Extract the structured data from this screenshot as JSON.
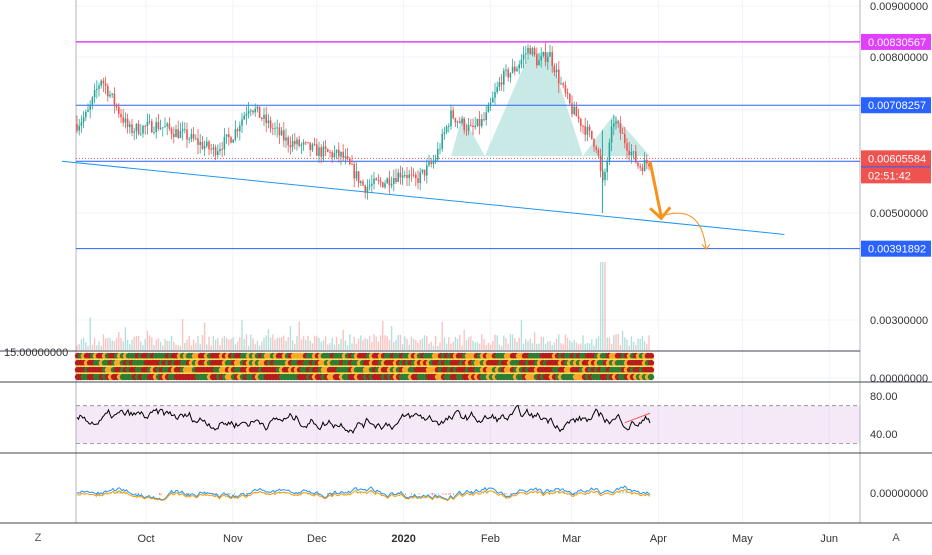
{
  "chart_data": {
    "type": "candlestick",
    "x_tick_labels": [
      "Oct",
      "Nov",
      "Dec",
      "2020",
      "Feb",
      "Mar",
      "Apr",
      "May",
      "Jun"
    ],
    "y_tick_labels": [
      "0.00900000",
      "0.00800000",
      "0.00500000",
      "0.00300000",
      "0.00000000"
    ],
    "price_range": [
      0.0,
      0.0093
    ],
    "price_series": {
      "name": "",
      "points": [
        {
          "date": "2019-09-04",
          "price": 0.0066
        },
        {
          "date": "2019-09-10",
          "price": 0.0069
        },
        {
          "date": "2019-09-15",
          "price": 0.0076
        },
        {
          "date": "2019-09-20",
          "price": 0.0071
        },
        {
          "date": "2019-09-25",
          "price": 0.0066
        },
        {
          "date": "2019-10-05",
          "price": 0.0067
        },
        {
          "date": "2019-10-15",
          "price": 0.0065
        },
        {
          "date": "2019-10-25",
          "price": 0.0062
        },
        {
          "date": "2019-11-01",
          "price": 0.0065
        },
        {
          "date": "2019-11-07",
          "price": 0.0071
        },
        {
          "date": "2019-11-12",
          "price": 0.0068
        },
        {
          "date": "2019-11-20",
          "price": 0.0064
        },
        {
          "date": "2019-12-01",
          "price": 0.0062
        },
        {
          "date": "2019-12-10",
          "price": 0.0061
        },
        {
          "date": "2019-12-18",
          "price": 0.0055
        },
        {
          "date": "2019-12-25",
          "price": 0.0056
        },
        {
          "date": "2020-01-01",
          "price": 0.0058
        },
        {
          "date": "2020-01-05",
          "price": 0.0056
        },
        {
          "date": "2020-01-12",
          "price": 0.006
        },
        {
          "date": "2020-01-18",
          "price": 0.0069
        },
        {
          "date": "2020-01-25",
          "price": 0.0066
        },
        {
          "date": "2020-01-30",
          "price": 0.0068
        },
        {
          "date": "2020-02-05",
          "price": 0.0076
        },
        {
          "date": "2020-02-10",
          "price": 0.0078
        },
        {
          "date": "2020-02-15",
          "price": 0.0082
        },
        {
          "date": "2020-02-18",
          "price": 0.0079
        },
        {
          "date": "2020-02-22",
          "price": 0.0081
        },
        {
          "date": "2020-02-26",
          "price": 0.0075
        },
        {
          "date": "2020-03-01",
          "price": 0.007
        },
        {
          "date": "2020-03-05",
          "price": 0.0067
        },
        {
          "date": "2020-03-10",
          "price": 0.0063
        },
        {
          "date": "2020-03-12",
          "price": 0.0055
        },
        {
          "date": "2020-03-14",
          "price": 0.0061
        },
        {
          "date": "2020-03-16",
          "price": 0.0068
        },
        {
          "date": "2020-03-20",
          "price": 0.0064
        },
        {
          "date": "2020-03-25",
          "price": 0.0059
        },
        {
          "date": "2020-03-29",
          "price": 0.006
        }
      ]
    },
    "horizontal_levels": [
      {
        "label": "0.00830567",
        "value": 0.00830567,
        "color": "#e040fb"
      },
      {
        "label": "0.00708257",
        "value": 0.00708257,
        "color": "#2962ff"
      },
      {
        "label": "0.00599921",
        "value": 0.00599921,
        "color": "#2962ff"
      },
      {
        "label": "0.00391892",
        "value": 0.00391892,
        "color": "#2962ff"
      }
    ],
    "current_price": {
      "label": "0.00605584",
      "value": 0.00605584,
      "countdown": "02:51:42",
      "color": "#ef5350"
    },
    "trendline": {
      "start": {
        "date": "2019-09-01",
        "price": 0.006
      },
      "end": {
        "date": "2020-05-16",
        "price": 0.00435
      }
    },
    "projection_arrows": [
      {
        "from": {
          "date": "2020-03-29",
          "price": 0.006
        },
        "to": {
          "date": "2020-04-02",
          "price": 0.0049
        },
        "color": "#f7931a"
      },
      {
        "from": {
          "date": "2020-04-02",
          "price": 0.0049
        },
        "to": {
          "date": "2020-04-18",
          "price": 0.0039
        },
        "color": "#f7931a"
      }
    ],
    "head_and_shoulders_pattern": true,
    "indicator_1": {
      "label": "15.00000000"
    },
    "rsi": {
      "tick_labels": [
        "80.00",
        "40.00"
      ],
      "range": [
        20,
        95
      ],
      "band": [
        30,
        70
      ]
    },
    "oscillator": {
      "tick_labels": [
        "0.00000000"
      ]
    }
  },
  "colors": {
    "up": "#26a69a",
    "down": "#ef5350",
    "level_blue": "#2962ff",
    "magenta": "#e040fb",
    "orange": "#f7931a",
    "pattern_fill": "#b2dfdb"
  },
  "controls": {
    "left_corner": "Z",
    "right_corner": "A"
  }
}
